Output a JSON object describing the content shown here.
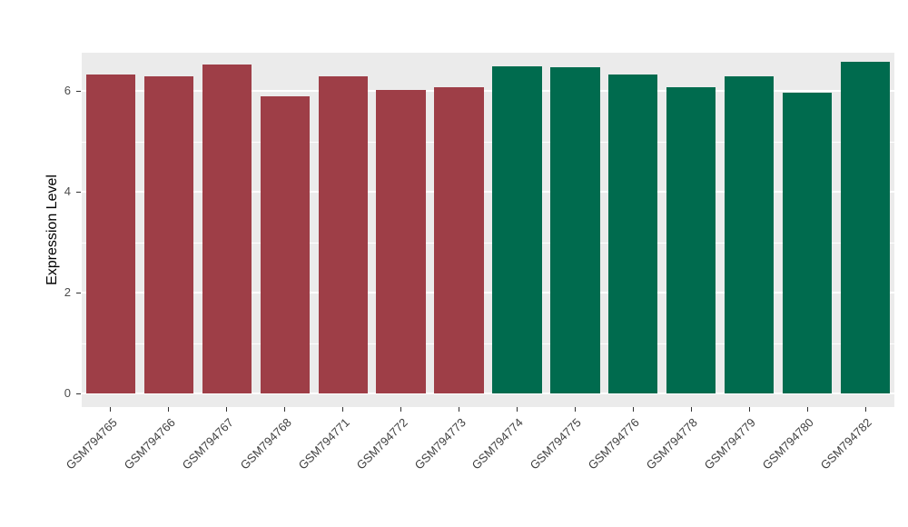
{
  "chart_data": {
    "type": "bar",
    "title": "",
    "xlabel": "",
    "ylabel": "Expression Level",
    "categories": [
      "GSM794765",
      "GSM794766",
      "GSM794767",
      "GSM794768",
      "GSM794771",
      "GSM794772",
      "GSM794773",
      "GSM794774",
      "GSM794775",
      "GSM794776",
      "GSM794778",
      "GSM794779",
      "GSM794780",
      "GSM794782"
    ],
    "values": [
      6.32,
      6.28,
      6.52,
      5.9,
      6.28,
      6.01,
      6.07,
      6.48,
      6.46,
      6.32,
      6.07,
      6.28,
      5.96,
      6.57
    ],
    "groups": [
      "A",
      "A",
      "A",
      "A",
      "A",
      "A",
      "A",
      "B",
      "B",
      "B",
      "B",
      "B",
      "B",
      "B"
    ],
    "group_colors": {
      "A": "#9E3E47",
      "B": "#006B4E"
    },
    "ylim": [
      0,
      6.76
    ],
    "yticks": [
      0,
      2,
      4,
      6
    ],
    "yticks_minor": [
      1,
      3,
      5
    ],
    "grid": "on",
    "legend": "none",
    "panel_background": "#EBEBEB",
    "gridline_color": "#FFFFFF"
  }
}
